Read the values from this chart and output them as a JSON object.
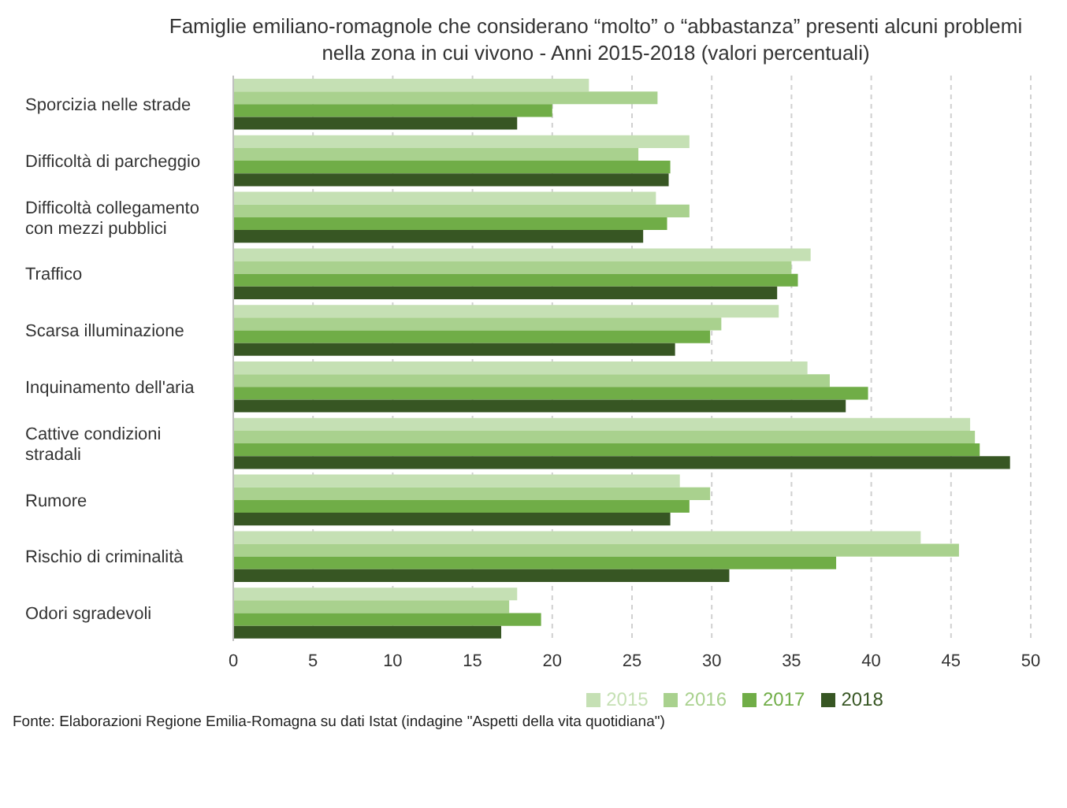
{
  "chart_data": {
    "type": "bar",
    "orientation": "horizontal",
    "title": "Famiglie emiliano-romagnole che considerano “molto” o “abbastanza” presenti alcuni problemi nella zona in cui vivono - Anni 2015-2018 (valori percentuali)",
    "categories": [
      "Sporcizia nelle strade",
      "Difficoltà di parcheggio",
      "Difficoltà collegamento con mezzi pubblici",
      "Traffico",
      "Scarsa illuminazione",
      "Inquinamento dell'aria",
      "Cattive condizioni stradali",
      "Rumore",
      "Rischio di criminalità",
      "Odori sgradevoli"
    ],
    "series": [
      {
        "name": "2015",
        "color": "#c5e0b4",
        "values": [
          22.3,
          28.6,
          26.5,
          36.2,
          34.2,
          36.0,
          46.2,
          28.0,
          43.1,
          17.8
        ]
      },
      {
        "name": "2016",
        "color": "#a9d18e",
        "values": [
          26.6,
          25.4,
          28.6,
          35.0,
          30.6,
          37.4,
          46.5,
          29.9,
          45.5,
          17.3
        ]
      },
      {
        "name": "2017",
        "color": "#70ad47",
        "values": [
          20.0,
          27.4,
          27.2,
          35.4,
          29.9,
          39.8,
          46.8,
          28.6,
          37.8,
          19.3
        ]
      },
      {
        "name": "2018",
        "color": "#375623",
        "values": [
          17.8,
          27.3,
          25.7,
          34.1,
          27.7,
          38.4,
          48.7,
          27.4,
          31.1,
          16.8
        ]
      }
    ],
    "xlim": [
      0,
      50
    ],
    "xticks": [
      0,
      5,
      10,
      15,
      20,
      25,
      30,
      35,
      40,
      45,
      50
    ],
    "grid": "x",
    "legend": "bottom",
    "annotations": [
      "Fonte: Elaborazioni Regione Emilia-Romagna su dati Istat (indagine \"Aspetti della vita quotidiana\")"
    ]
  }
}
